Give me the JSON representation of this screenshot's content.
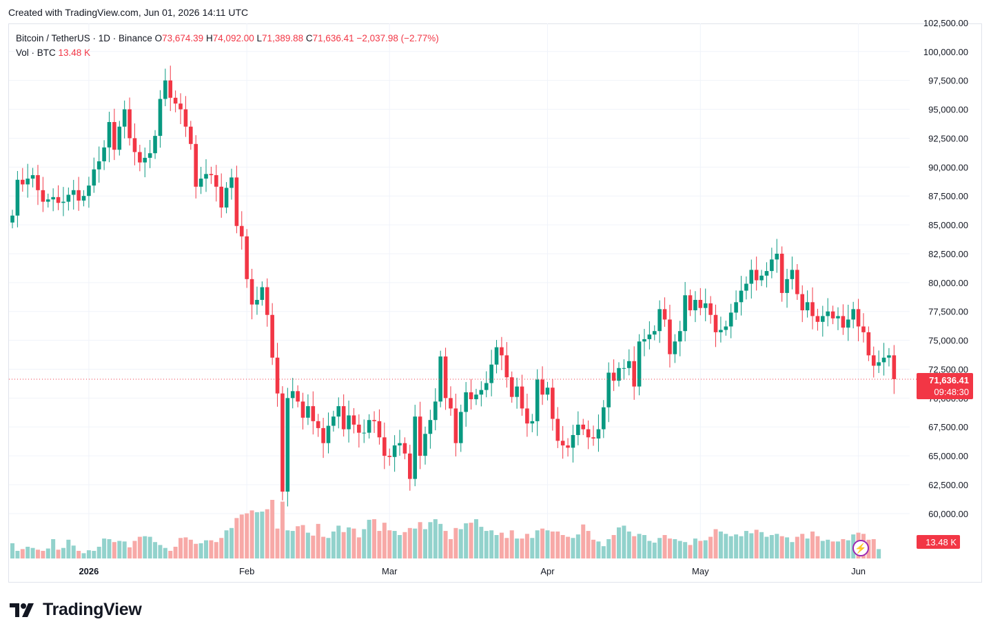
{
  "header": {
    "created_text": "Created with TradingView.com, Jun 01, 2026 14:11 UTC"
  },
  "legend": {
    "symbol": "Bitcoin / TetherUS · 1D · Binance",
    "open_label": "O",
    "open": "73,674.39",
    "high_label": "H",
    "high": "74,092.00",
    "low_label": "L",
    "low": "71,389.88",
    "close_label": "C",
    "close": "71,636.41",
    "change": "−2,037.98 (−2.77%)",
    "vol_label": "Vol · BTC",
    "vol_value": "13.48 K"
  },
  "price_tag": {
    "price": "71,636.41",
    "countdown": "09:48:30"
  },
  "volume_tag": "13.48 K",
  "colors": {
    "up": "#089981",
    "down": "#f23645",
    "vol_up": "#92d2cc",
    "vol_down": "#f7a9a7",
    "grid": "#f0f3fa",
    "accent": "#9c27b0"
  },
  "icons": {
    "alert": "lightning-icon",
    "logo": "tradingview-logo-icon"
  },
  "logo_text": "TradingView",
  "chart_data": {
    "type": "candlestick",
    "title": "Bitcoin / TetherUS · 1D · Binance",
    "ylim": [
      57500,
      103500
    ],
    "y_ticks": [
      60000,
      62500,
      65000,
      67500,
      70000,
      72500,
      75000,
      77500,
      80000,
      82500,
      85000,
      87500,
      90000,
      92500,
      95000,
      97500,
      100000,
      102500
    ],
    "y_tick_labels": [
      "60,000.00",
      "62,500.00",
      "65,000.00",
      "67,500.00",
      "70,000.00",
      "72,500.00",
      "75,000.00",
      "77,500.00",
      "80,000.00",
      "82,500.00",
      "85,000.00",
      "87,500.00",
      "90,000.00",
      "92,500.00",
      "95,000.00",
      "97,500.00",
      "100,000.00",
      "102,500.00"
    ],
    "x_labels": [
      {
        "label": "2026",
        "index": 15
      },
      {
        "label": "Feb",
        "index": 46
      },
      {
        "label": "Mar",
        "index": 74
      },
      {
        "label": "Apr",
        "index": 105
      },
      {
        "label": "May",
        "index": 135
      },
      {
        "label": "Jun",
        "index": 166
      }
    ],
    "last_price": 71636.41,
    "closes": [
      85800,
      88900,
      88500,
      89000,
      89300,
      88000,
      87000,
      87200,
      87400,
      86900,
      87000,
      87600,
      88000,
      87100,
      87500,
      88400,
      89800,
      90500,
      91700,
      93900,
      91500,
      93500,
      95000,
      92500,
      91300,
      90400,
      90800,
      91200,
      92700,
      95900,
      97500,
      96000,
      95500,
      95000,
      93500,
      92000,
      88300,
      89000,
      89400,
      89300,
      88300,
      86500,
      88200,
      89100,
      84900,
      84000,
      80300,
      78100,
      78500,
      79600,
      77200,
      73500,
      70400,
      61900,
      70000,
      70600,
      69700,
      68300,
      69300,
      68000,
      67400,
      66100,
      67600,
      68400,
      69300,
      67300,
      68500,
      67700,
      67000,
      67000,
      68100,
      68000,
      66600,
      65000,
      64900,
      65900,
      66100,
      65200,
      63000,
      68400,
      65000,
      66900,
      68100,
      69700,
      73600,
      70000,
      69100,
      66100,
      68800,
      70500,
      69900,
      70300,
      70700,
      71300,
      72900,
      74400,
      73700,
      71800,
      70100,
      71000,
      69100,
      67800,
      68000,
      71600,
      70300,
      70900,
      68200,
      66300,
      65900,
      65700,
      66800,
      67700,
      67300,
      66600,
      66500,
      67300,
      69200,
      72200,
      71500,
      72600,
      72600,
      73200,
      71000,
      74900,
      75100,
      75500,
      75800,
      77700,
      76800,
      73800,
      74900,
      75800,
      78900,
      77600,
      78500,
      77800,
      78200,
      77200,
      75700,
      75900,
      76200,
      77400,
      78300,
      79300,
      79900,
      81100,
      80200,
      80600,
      81000,
      82000,
      82500,
      79100,
      80300,
      81100,
      79000,
      77600,
      78300,
      77100,
      76600,
      77100,
      77500,
      76900,
      77100,
      76100,
      76800,
      77700,
      76200,
      75700,
      73700,
      72800,
      73100,
      73500,
      73700,
      71636.41
    ],
    "volume_ylim": [
      0,
      10000
    ],
    "volumes": [
      2600,
      1300,
      1600,
      2000,
      1800,
      1500,
      1300,
      1700,
      3300,
      1500,
      1800,
      3200,
      2200,
      1300,
      900,
      1400,
      1300,
      2000,
      3400,
      3300,
      2800,
      3000,
      2900,
      1900,
      3000,
      3700,
      3800,
      3700,
      2800,
      2300,
      1800,
      1300,
      2000,
      3500,
      3600,
      3200,
      2500,
      2600,
      3100,
      3100,
      2800,
      3500,
      4800,
      5200,
      6900,
      7500,
      7700,
      8200,
      7900,
      8000,
      8400,
      10000,
      5100,
      9700,
      4800,
      4700,
      5500,
      5700,
      4400,
      3900,
      5900,
      3700,
      3500,
      4600,
      5600,
      4500,
      5300,
      5100,
      3600,
      5000,
      6600,
      6700,
      4700,
      6100,
      4800,
      4700,
      4000,
      4500,
      5200,
      5100,
      6200,
      5000,
      6200,
      6700,
      5900,
      4700,
      3300,
      5200,
      5000,
      6000,
      6100,
      6700,
      5400,
      4700,
      4800,
      4000,
      4400,
      3500,
      4800,
      3400,
      3400,
      4200,
      3500,
      4800,
      5100,
      4800,
      4600,
      4600,
      4000,
      3700,
      3500,
      4100,
      5800,
      4700,
      3200,
      2900,
      2100,
      3300,
      4000,
      5300,
      5600,
      4600,
      3800,
      4200,
      4000,
      3000,
      2700,
      3500,
      4000,
      3400,
      3300,
      3000,
      2800,
      2300,
      3400,
      3000,
      3100,
      3700,
      5000,
      4600,
      4200,
      3800,
      4100,
      3800,
      4700,
      4300,
      4900,
      4500,
      3700,
      4000,
      4200,
      3800,
      3600,
      2800,
      3700,
      4200,
      3400,
      4600,
      3800,
      3000,
      3200,
      2900,
      2900,
      3300,
      3100,
      4100,
      4400,
      4200,
      3200,
      3300,
      1600
    ],
    "up_color": "#089981",
    "down_color": "#f23645"
  }
}
